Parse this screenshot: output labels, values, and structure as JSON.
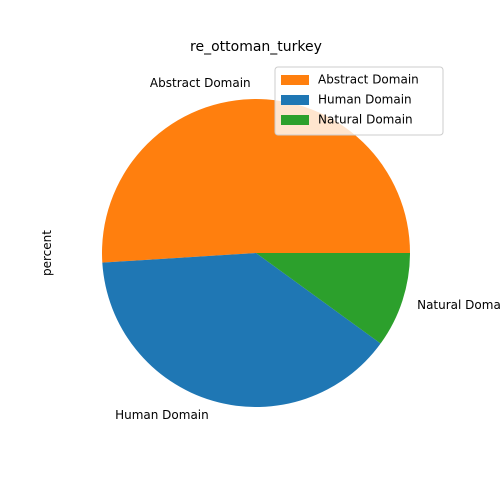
{
  "chart_data": {
    "type": "pie",
    "title": "re_ottoman_turkey",
    "ylabel": "percent",
    "legend_position": "top-right",
    "slices": [
      {
        "label": "Abstract Domain",
        "value": 51,
        "color": "#ff7f0e"
      },
      {
        "label": "Human Domain",
        "value": 39,
        "color": "#1f77b4"
      },
      {
        "label": "Natural Domain",
        "value": 10,
        "color": "#2ca02c"
      }
    ]
  }
}
